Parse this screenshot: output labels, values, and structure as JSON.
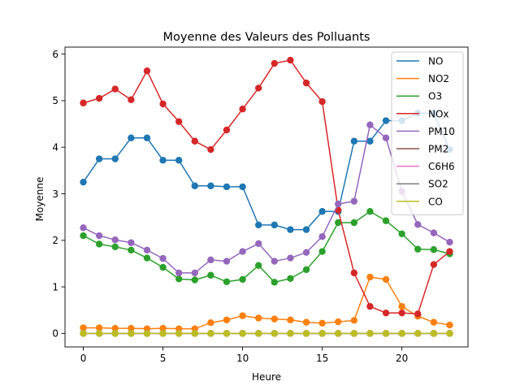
{
  "chart_data": {
    "type": "line",
    "title": "Moyenne des Valeurs des Polluants",
    "xlabel": "Heure",
    "ylabel": "Moyenne",
    "xlim": [
      -1.15,
      24.15
    ],
    "ylim": [
      -0.29,
      6.15
    ],
    "xticks": [
      0,
      5,
      10,
      15,
      20
    ],
    "yticks": [
      0,
      1,
      2,
      3,
      4,
      5,
      6
    ],
    "grid": false,
    "legend_position": "top-right",
    "x": [
      0,
      1,
      2,
      3,
      4,
      5,
      6,
      7,
      8,
      9,
      10,
      11,
      12,
      13,
      14,
      15,
      16,
      17,
      18,
      19,
      20,
      21,
      22,
      23
    ],
    "series": [
      {
        "name": "NO",
        "color": "#1f77b4",
        "values": [
          3.25,
          3.75,
          3.75,
          4.2,
          4.2,
          3.72,
          3.72,
          3.17,
          3.17,
          3.15,
          3.15,
          2.33,
          2.33,
          2.23,
          2.23,
          2.62,
          2.62,
          4.13,
          4.13,
          4.57,
          4.57,
          4.73,
          4.73,
          3.95
        ]
      },
      {
        "name": "NO2",
        "color": "#ff7f0e",
        "values": [
          0.12,
          0.12,
          0.11,
          0.11,
          0.1,
          0.11,
          0.1,
          0.1,
          0.23,
          0.29,
          0.38,
          0.33,
          0.31,
          0.29,
          0.24,
          0.22,
          0.25,
          0.28,
          1.21,
          1.16,
          0.58,
          0.37,
          0.24,
          0.18
        ]
      },
      {
        "name": "O3",
        "color": "#2ca02c",
        "values": [
          2.1,
          1.92,
          1.86,
          1.79,
          1.62,
          1.42,
          1.17,
          1.15,
          1.25,
          1.11,
          1.16,
          1.46,
          1.1,
          1.18,
          1.37,
          1.76,
          2.38,
          2.38,
          2.62,
          2.42,
          2.14,
          1.81,
          1.8,
          1.71
        ]
      },
      {
        "name": "NOx",
        "color": "#d62728",
        "values": [
          4.95,
          5.05,
          5.25,
          5.02,
          5.64,
          4.93,
          4.55,
          4.13,
          3.95,
          4.37,
          4.82,
          5.27,
          5.8,
          5.87,
          5.38,
          4.98,
          2.65,
          1.3,
          0.58,
          0.44,
          0.44,
          0.42,
          1.48,
          1.76
        ]
      },
      {
        "name": "PM10",
        "color": "#9467bd",
        "values": [
          2.27,
          2.1,
          2.01,
          1.95,
          1.79,
          1.61,
          1.3,
          1.3,
          1.58,
          1.55,
          1.76,
          1.93,
          1.55,
          1.62,
          1.74,
          2.08,
          2.78,
          2.84,
          4.48,
          4.2,
          3.05,
          2.34,
          2.16,
          1.96
        ]
      },
      {
        "name": "PM2",
        "color": "#8c564b",
        "values": [
          0,
          0,
          0,
          0,
          0,
          0,
          0,
          0,
          0,
          0,
          0,
          0,
          0,
          0,
          0,
          0,
          0,
          0,
          0,
          0,
          0,
          0,
          0,
          0
        ]
      },
      {
        "name": "C6H6",
        "color": "#e377c2",
        "values": [
          0,
          0,
          0,
          0,
          0,
          0,
          0,
          0,
          0,
          0,
          0,
          0,
          0,
          0,
          0,
          0,
          0,
          0,
          0,
          0,
          0,
          0,
          0,
          0
        ]
      },
      {
        "name": "SO2",
        "color": "#7f7f7f",
        "values": [
          0,
          0,
          0,
          0,
          0,
          0,
          0,
          0,
          0,
          0,
          0,
          0,
          0,
          0,
          0,
          0,
          0,
          0,
          0,
          0,
          0,
          0,
          0,
          0
        ]
      },
      {
        "name": "CO",
        "color": "#bcbd22",
        "values": [
          0,
          0,
          0,
          0,
          0,
          0,
          0,
          0,
          0,
          0,
          0,
          0,
          0,
          0,
          0,
          0,
          0,
          0,
          0,
          0,
          0,
          0,
          0,
          0
        ]
      }
    ]
  }
}
